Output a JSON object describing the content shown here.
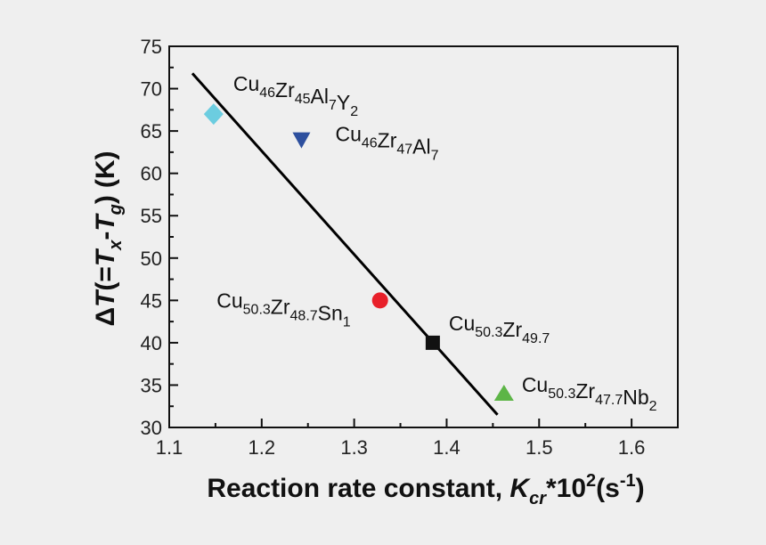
{
  "chart_data": {
    "type": "scatter",
    "title": "",
    "xlabel": {
      "main": "Reaction rate constant, ",
      "var": "K",
      "sub": "cr",
      "rest": "*10",
      "sup": "2",
      "unit_open": "(s",
      "unit_sup": "-1",
      "unit_close": ")"
    },
    "ylabel": {
      "delta": "Δ",
      "t1": "T",
      "p1": "(=",
      "t2": "T",
      "s2": "x",
      "p2": "-",
      "t3": "T",
      "s3": "g",
      "p3": ")",
      "unit": "(K)"
    },
    "xlim": [
      1.1,
      1.65
    ],
    "ylim": [
      30,
      75
    ],
    "xticks": [
      "1.1",
      "1.2",
      "1.3",
      "1.4",
      "1.5",
      "1.6"
    ],
    "yticks": [
      "30",
      "35",
      "40",
      "45",
      "50",
      "55",
      "60",
      "65",
      "70",
      "75"
    ],
    "grid": false,
    "fit_line": {
      "x": [
        1.125,
        1.455
      ],
      "y": [
        71.8,
        31.5
      ],
      "color": "#000000"
    },
    "points": [
      {
        "x": 1.148,
        "y": 67,
        "marker": "diamond",
        "color": "#6ccde0",
        "label": [
          [
            "Cu",
            "46"
          ],
          [
            "Zr",
            "45"
          ],
          [
            "Al",
            "7"
          ],
          [
            "Y",
            "2"
          ]
        ]
      },
      {
        "x": 1.243,
        "y": 64,
        "marker": "triangle-down",
        "color": "#2d4f9e",
        "label": [
          [
            "Cu",
            "46"
          ],
          [
            "Zr",
            "47"
          ],
          [
            "Al",
            "7"
          ]
        ]
      },
      {
        "x": 1.328,
        "y": 45,
        "marker": "circle",
        "color": "#e8202a",
        "label": [
          [
            "Cu",
            "50.3"
          ],
          [
            "Zr",
            "48.7"
          ],
          [
            "Sn",
            "1"
          ]
        ]
      },
      {
        "x": 1.385,
        "y": 40,
        "marker": "square",
        "color": "#111111",
        "label": [
          [
            "Cu",
            "50.3"
          ],
          [
            "Zr",
            "49.7"
          ]
        ]
      },
      {
        "x": 1.462,
        "y": 34,
        "marker": "triangle-up",
        "color": "#5db547",
        "label": [
          [
            "Cu",
            "50.3"
          ],
          [
            "Zr",
            "47.7"
          ],
          [
            "Nb",
            "2"
          ]
        ]
      }
    ]
  }
}
